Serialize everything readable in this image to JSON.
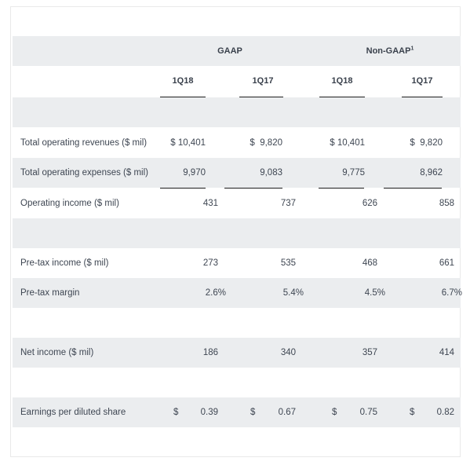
{
  "table": {
    "groups": [
      {
        "label": "GAAP",
        "sup": ""
      },
      {
        "label": "Non-GAAP",
        "sup": "1"
      }
    ],
    "periods": [
      "1Q18",
      "1Q17",
      "1Q18",
      "1Q17"
    ],
    "rows": [
      {
        "label": "Total operating revenues ($ mil)",
        "values": [
          "$ 10,401",
          "$  9,820",
          "$ 10,401",
          "$  9,820"
        ]
      },
      {
        "label": "Total operating expenses ($ mil)",
        "values": [
          "9,970",
          "9,083",
          "9,775",
          "8,962"
        ]
      },
      {
        "label": "Operating income ($ mil)",
        "values": [
          "431",
          "737",
          "626",
          "858"
        ]
      },
      {
        "label": "Pre-tax income ($ mil)",
        "values": [
          "273",
          "535",
          "468",
          "661"
        ]
      },
      {
        "label": "Pre-tax margin",
        "values": [
          "2.6%",
          "5.4%",
          "4.5%",
          "6.7%"
        ]
      },
      {
        "label": "Net income ($ mil)",
        "values": [
          "186",
          "340",
          "357",
          "414"
        ]
      },
      {
        "label": "Earnings per diluted share",
        "currency": "$",
        "values": [
          "0.39",
          "0.67",
          "0.75",
          "0.82"
        ]
      }
    ]
  }
}
